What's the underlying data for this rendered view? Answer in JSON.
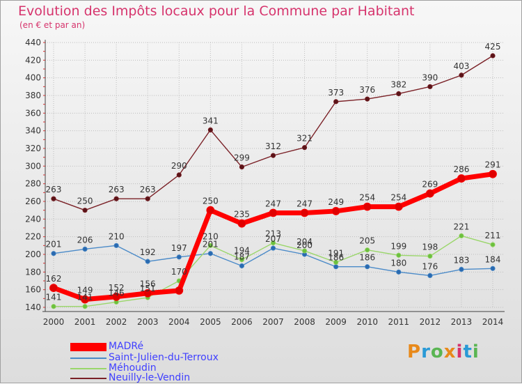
{
  "title": "Evolution des Impôts locaux pour la Commune par Habitant",
  "subtitle": "(en € et par an)",
  "brand": {
    "text": "Proxiti",
    "colors": [
      "#e8891a",
      "#2a9ad6",
      "#5ab552",
      "#e8891a",
      "#d6336c",
      "#2a9ad6",
      "#5ab552"
    ]
  },
  "colors": {
    "title": "#d6336c",
    "legend_text": "#4040ff",
    "axis": "#404040",
    "grid": "#bdbdbd"
  },
  "chart_data": {
    "type": "line",
    "title": "Evolution des Impôts locaux pour la Commune par Habitant",
    "subtitle": "(en € et par an)",
    "xlabel": "",
    "ylabel": "",
    "x": [
      "2000",
      "2001",
      "2002",
      "2003",
      "2004",
      "2005",
      "2006",
      "2007",
      "2008",
      "2009",
      "2010",
      "2011",
      "2012",
      "2013",
      "2014"
    ],
    "ylim": [
      140,
      440
    ],
    "yticks": [
      140,
      160,
      180,
      200,
      220,
      240,
      260,
      280,
      300,
      320,
      340,
      360,
      380,
      400,
      420,
      440
    ],
    "grid": true,
    "legend_position": "bottom-left",
    "series": [
      {
        "name": "Neuilly-le-Vendin",
        "color": "#7a2026",
        "line_color": "#7a2026",
        "marker_color": "#5a1418",
        "width": 1.4,
        "marker": 3.2,
        "values": [
          263,
          250,
          263,
          263,
          290,
          341,
          299,
          312,
          321,
          373,
          376,
          382,
          390,
          403,
          425
        ]
      },
      {
        "name": "Saint-Julien-du-Terroux",
        "color": "#4a8ac8",
        "line_color": "#4a8ac8",
        "marker_color": "#2a6ab0",
        "width": 1.4,
        "marker": 3.2,
        "values": [
          201,
          206,
          210,
          192,
          197,
          201,
          187,
          207,
          200,
          186,
          186,
          180,
          176,
          183,
          184
        ]
      },
      {
        "name": "Méhoudin",
        "color": "#9ad66a",
        "line_color": "#9ad66a",
        "marker_color": "#6cc03e",
        "width": 1.4,
        "marker": 3.2,
        "values": [
          141,
          141,
          146,
          151,
          170,
          210,
          194,
          213,
          204,
          191,
          205,
          199,
          198,
          221,
          211
        ]
      },
      {
        "name": "MADRé",
        "color": "#ff0000",
        "line_color": "#ff0000",
        "marker_color": "#e00000",
        "width": 7,
        "marker": 5.5,
        "values": [
          162,
          149,
          152,
          156,
          159,
          250,
          235,
          247,
          247,
          249,
          254,
          254,
          269,
          286,
          291
        ]
      }
    ],
    "labels": [
      {
        "series": "Neuilly-le-Vendin",
        "values": [
          263,
          250,
          263,
          263,
          290,
          341,
          299,
          312,
          321,
          373,
          376,
          382,
          390,
          403,
          425
        ]
      },
      {
        "series": "Saint-Julien-du-Terroux",
        "values": [
          201,
          206,
          210,
          192,
          197,
          201,
          187,
          207,
          200,
          186,
          186,
          180,
          176,
          183,
          184
        ]
      },
      {
        "series": "Méhoudin",
        "values": [
          141,
          141,
          146,
          151,
          170,
          210,
          194,
          213,
          204,
          191,
          205,
          199,
          198,
          221,
          211
        ]
      },
      {
        "series": "MADRé",
        "values": [
          162,
          149,
          152,
          156,
          null,
          250,
          235,
          247,
          247,
          249,
          254,
          254,
          269,
          286,
          291
        ]
      }
    ]
  },
  "legend": [
    {
      "label": "MADRé",
      "color": "#ff0000",
      "thickness": 12
    },
    {
      "label": "Saint-Julien-du-Terroux",
      "color": "#4a8ac8",
      "thickness": 2
    },
    {
      "label": "Méhoudin",
      "color": "#9ad66a",
      "thickness": 2
    },
    {
      "label": "Neuilly-le-Vendin",
      "color": "#7a2026",
      "thickness": 2
    }
  ]
}
